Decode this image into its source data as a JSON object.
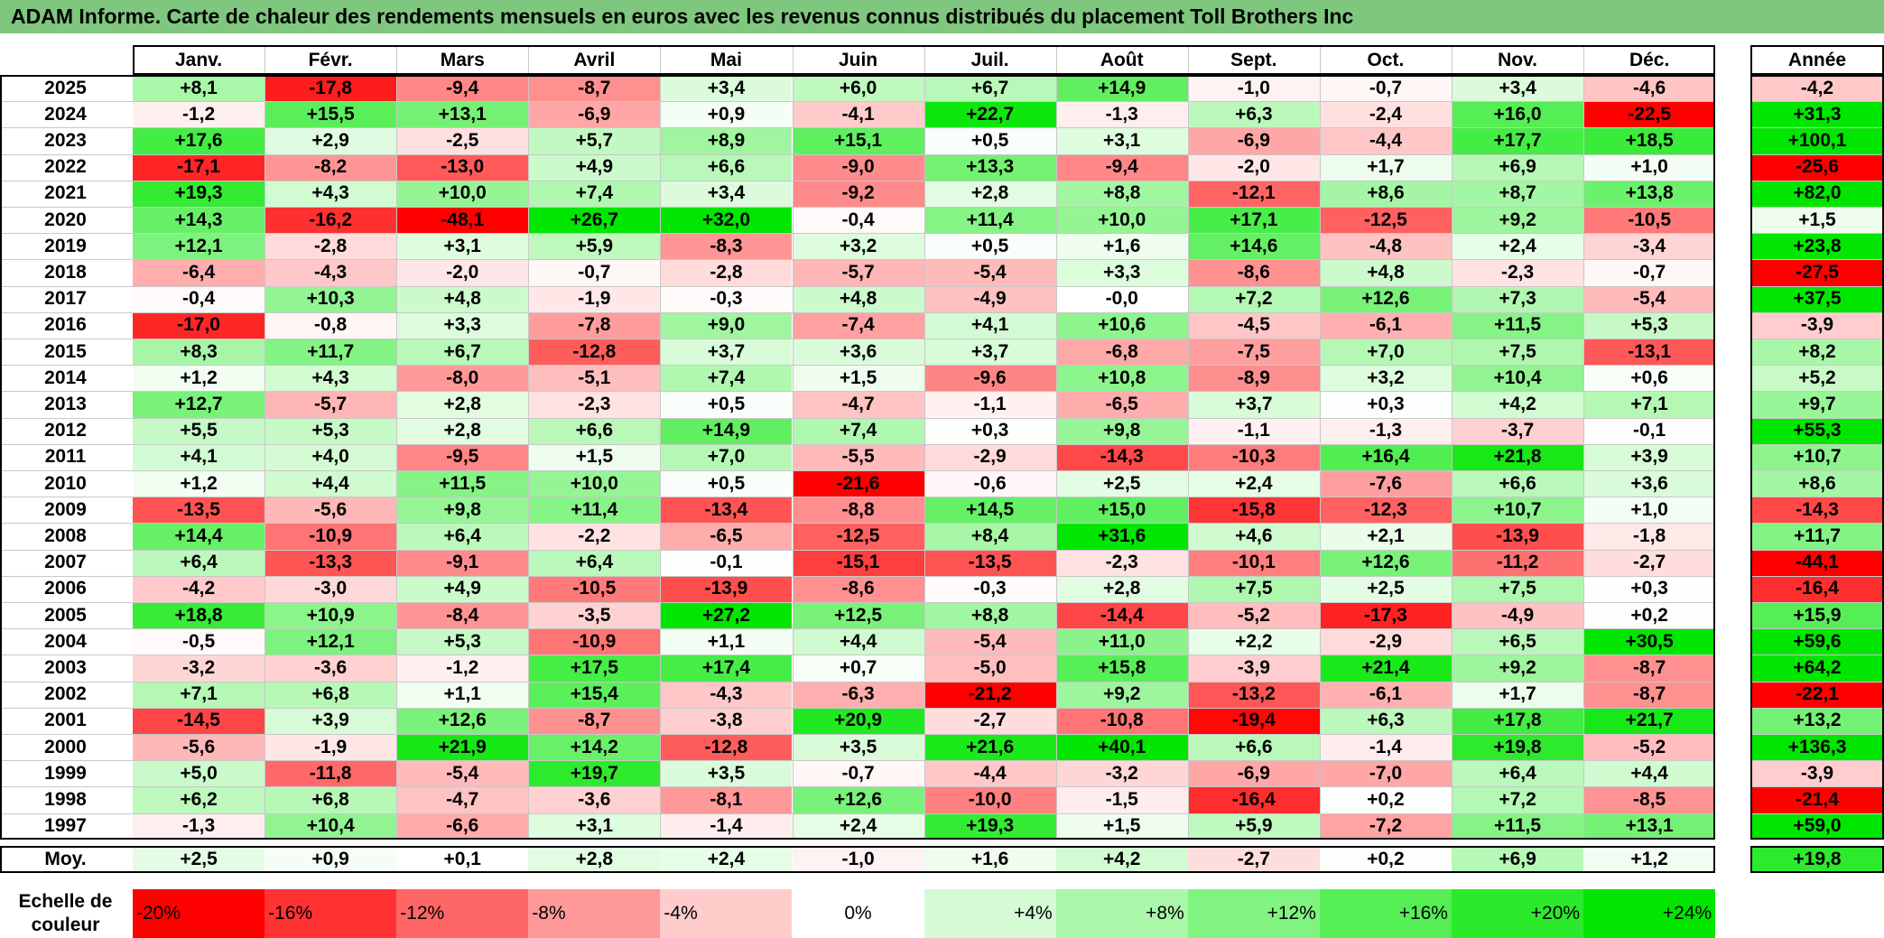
{
  "title": "ADAM Informe. Carte de chaleur des rendements mensuels en euros avec les revenus connus distribués du placement Toll Brothers Inc",
  "chart_data": {
    "type": "heatmap",
    "months": [
      "Janv.",
      "Févr.",
      "Mars",
      "Avril",
      "Mai",
      "Juin",
      "Juil.",
      "Août",
      "Sept.",
      "Oct.",
      "Nov.",
      "Déc."
    ],
    "annual_header": "Année",
    "rows": [
      {
        "year": "2025",
        "values": [
          "+8,1",
          "-17,8",
          "-9,4",
          "-8,7",
          "+3,4",
          "+6,0",
          "+6,7",
          "+14,9",
          "-1,0",
          "-0,7",
          "+3,4",
          "-4,6"
        ],
        "annual": "-4,2"
      },
      {
        "year": "2024",
        "values": [
          "-1,2",
          "+15,5",
          "+13,1",
          "-6,9",
          "+0,9",
          "-4,1",
          "+22,7",
          "-1,3",
          "+6,3",
          "-2,4",
          "+16,0",
          "-22,5"
        ],
        "annual": "+31,3"
      },
      {
        "year": "2023",
        "values": [
          "+17,6",
          "+2,9",
          "-2,5",
          "+5,7",
          "+8,9",
          "+15,1",
          "+0,5",
          "+3,1",
          "-6,9",
          "-4,4",
          "+17,7",
          "+18,5"
        ],
        "annual": "+100,1"
      },
      {
        "year": "2022",
        "values": [
          "-17,1",
          "-8,2",
          "-13,0",
          "+4,9",
          "+6,6",
          "-9,0",
          "+13,3",
          "-9,4",
          "-2,0",
          "+1,7",
          "+6,9",
          "+1,0"
        ],
        "annual": "-25,6"
      },
      {
        "year": "2021",
        "values": [
          "+19,3",
          "+4,3",
          "+10,0",
          "+7,4",
          "+3,4",
          "-9,2",
          "+2,8",
          "+8,8",
          "-12,1",
          "+8,6",
          "+8,7",
          "+13,8"
        ],
        "annual": "+82,0"
      },
      {
        "year": "2020",
        "values": [
          "+14,3",
          "-16,2",
          "-48,1",
          "+26,7",
          "+32,0",
          "-0,4",
          "+11,4",
          "+10,0",
          "+17,1",
          "-12,5",
          "+9,2",
          "-10,5"
        ],
        "annual": "+1,5"
      },
      {
        "year": "2019",
        "values": [
          "+12,1",
          "-2,8",
          "+3,1",
          "+5,9",
          "-8,3",
          "+3,2",
          "+0,5",
          "+1,6",
          "+14,6",
          "-4,8",
          "+2,4",
          "-3,4"
        ],
        "annual": "+23,8"
      },
      {
        "year": "2018",
        "values": [
          "-6,4",
          "-4,3",
          "-2,0",
          "-0,7",
          "-2,8",
          "-5,7",
          "-5,4",
          "+3,3",
          "-8,6",
          "+4,8",
          "-2,3",
          "-0,7"
        ],
        "annual": "-27,5"
      },
      {
        "year": "2017",
        "values": [
          "-0,4",
          "+10,3",
          "+4,8",
          "-1,9",
          "-0,3",
          "+4,8",
          "-4,9",
          "-0,0",
          "+7,2",
          "+12,6",
          "+7,3",
          "-5,4"
        ],
        "annual": "+37,5"
      },
      {
        "year": "2016",
        "values": [
          "-17,0",
          "-0,8",
          "+3,3",
          "-7,8",
          "+9,0",
          "-7,4",
          "+4,1",
          "+10,6",
          "-4,5",
          "-6,1",
          "+11,5",
          "+5,3"
        ],
        "annual": "-3,9"
      },
      {
        "year": "2015",
        "values": [
          "+8,3",
          "+11,7",
          "+6,7",
          "-12,8",
          "+3,7",
          "+3,6",
          "+3,7",
          "-6,8",
          "-7,5",
          "+7,0",
          "+7,5",
          "-13,1"
        ],
        "annual": "+8,2"
      },
      {
        "year": "2014",
        "values": [
          "+1,2",
          "+4,3",
          "-8,0",
          "-5,1",
          "+7,4",
          "+1,5",
          "-9,6",
          "+10,8",
          "-8,9",
          "+3,2",
          "+10,4",
          "+0,6"
        ],
        "annual": "+5,2"
      },
      {
        "year": "2013",
        "values": [
          "+12,7",
          "-5,7",
          "+2,8",
          "-2,3",
          "+0,5",
          "-4,7",
          "-1,1",
          "-6,5",
          "+3,7",
          "+0,3",
          "+4,2",
          "+7,1"
        ],
        "annual": "+9,7"
      },
      {
        "year": "2012",
        "values": [
          "+5,5",
          "+5,3",
          "+2,8",
          "+6,6",
          "+14,9",
          "+7,4",
          "+0,3",
          "+9,8",
          "-1,1",
          "-1,3",
          "-3,7",
          "-0,1"
        ],
        "annual": "+55,3"
      },
      {
        "year": "2011",
        "values": [
          "+4,1",
          "+4,0",
          "-9,5",
          "+1,5",
          "+7,0",
          "-5,5",
          "-2,9",
          "-14,3",
          "-10,3",
          "+16,4",
          "+21,8",
          "+3,9"
        ],
        "annual": "+10,7"
      },
      {
        "year": "2010",
        "values": [
          "+1,2",
          "+4,4",
          "+11,5",
          "+10,0",
          "+0,5",
          "-21,6",
          "-0,6",
          "+2,5",
          "+2,4",
          "-7,6",
          "+6,6",
          "+3,6"
        ],
        "annual": "+8,6"
      },
      {
        "year": "2009",
        "values": [
          "-13,5",
          "-5,6",
          "+9,8",
          "+11,4",
          "-13,4",
          "-8,8",
          "+14,5",
          "+15,0",
          "-15,8",
          "-12,3",
          "+10,7",
          "+1,0"
        ],
        "annual": "-14,3"
      },
      {
        "year": "2008",
        "values": [
          "+14,4",
          "-10,9",
          "+6,4",
          "-2,2",
          "-6,5",
          "-12,5",
          "+8,4",
          "+31,6",
          "+4,6",
          "+2,1",
          "-13,9",
          "-1,8"
        ],
        "annual": "+11,7"
      },
      {
        "year": "2007",
        "values": [
          "+6,4",
          "-13,3",
          "-9,1",
          "+6,4",
          "-0,1",
          "-15,1",
          "-13,5",
          "-2,3",
          "-10,1",
          "+12,6",
          "-11,2",
          "-2,7"
        ],
        "annual": "-44,1"
      },
      {
        "year": "2006",
        "values": [
          "-4,2",
          "-3,0",
          "+4,9",
          "-10,5",
          "-13,9",
          "-8,6",
          "-0,3",
          "+2,8",
          "+7,5",
          "+2,5",
          "+7,5",
          "+0,3"
        ],
        "annual": "-16,4"
      },
      {
        "year": "2005",
        "values": [
          "+18,8",
          "+10,9",
          "-8,4",
          "-3,5",
          "+27,2",
          "+12,5",
          "+8,8",
          "-14,4",
          "-5,2",
          "-17,3",
          "-4,9",
          "+0,2"
        ],
        "annual": "+15,9"
      },
      {
        "year": "2004",
        "values": [
          "-0,5",
          "+12,1",
          "+5,3",
          "-10,9",
          "+1,1",
          "+4,4",
          "-5,4",
          "+11,0",
          "+2,2",
          "-2,9",
          "+6,5",
          "+30,5"
        ],
        "annual": "+59,6"
      },
      {
        "year": "2003",
        "values": [
          "-3,2",
          "-3,6",
          "-1,2",
          "+17,5",
          "+17,4",
          "+0,7",
          "-5,0",
          "+15,8",
          "-3,9",
          "+21,4",
          "+9,2",
          "-8,7"
        ],
        "annual": "+64,2"
      },
      {
        "year": "2002",
        "values": [
          "+7,1",
          "+6,8",
          "+1,1",
          "+15,4",
          "-4,3",
          "-6,3",
          "-21,2",
          "+9,2",
          "-13,2",
          "-6,1",
          "+1,7",
          "-8,7"
        ],
        "annual": "-22,1"
      },
      {
        "year": "2001",
        "values": [
          "-14,5",
          "+3,9",
          "+12,6",
          "-8,7",
          "-3,8",
          "+20,9",
          "-2,7",
          "-10,8",
          "-19,4",
          "+6,3",
          "+17,8",
          "+21,7"
        ],
        "annual": "+13,2"
      },
      {
        "year": "2000",
        "values": [
          "-5,6",
          "-1,9",
          "+21,9",
          "+14,2",
          "-12,8",
          "+3,5",
          "+21,6",
          "+40,1",
          "+6,6",
          "-1,4",
          "+19,8",
          "-5,2"
        ],
        "annual": "+136,3"
      },
      {
        "year": "1999",
        "values": [
          "+5,0",
          "-11,8",
          "-5,4",
          "+19,7",
          "+3,5",
          "-0,7",
          "-4,4",
          "-3,2",
          "-6,9",
          "-7,0",
          "+6,4",
          "+4,4"
        ],
        "annual": "-3,9"
      },
      {
        "year": "1998",
        "values": [
          "+6,2",
          "+6,8",
          "-4,7",
          "-3,6",
          "-8,1",
          "+12,6",
          "-10,0",
          "-1,5",
          "-16,4",
          "+0,2",
          "+7,2",
          "-8,5"
        ],
        "annual": "-21,4"
      },
      {
        "year": "1997",
        "values": [
          "-1,3",
          "+10,4",
          "-6,6",
          "+3,1",
          "-1,4",
          "+2,4",
          "+19,3",
          "+1,5",
          "+5,9",
          "-7,2",
          "+11,5",
          "+13,1"
        ],
        "annual": "+59,0"
      }
    ],
    "average": {
      "label": "Moy.",
      "values": [
        "+2,5",
        "+0,9",
        "+0,1",
        "+2,8",
        "+2,4",
        "-1,0",
        "+1,6",
        "+4,2",
        "-2,7",
        "+0,2",
        "+6,9",
        "+1,2"
      ],
      "annual": "+19,8"
    },
    "scale": {
      "label": "Echelle de couleur",
      "stops": [
        {
          "label": "-20%",
          "value": -20
        },
        {
          "label": "-16%",
          "value": -16
        },
        {
          "label": "-12%",
          "value": -12
        },
        {
          "label": "-8%",
          "value": -8
        },
        {
          "label": "-4%",
          "value": -4
        },
        {
          "label": "0%",
          "value": 0
        },
        {
          "label": "+4%",
          "value": 4
        },
        {
          "label": "+8%",
          "value": 8
        },
        {
          "label": "+12%",
          "value": 12
        },
        {
          "label": "+16%",
          "value": 16
        },
        {
          "label": "+20%",
          "value": 20
        },
        {
          "label": "+24%",
          "value": 24
        }
      ]
    },
    "colors": {
      "negative": "#ff0000",
      "positive": "#00e600",
      "neutral": "#ffffff",
      "title_bg": "#7fc77f"
    },
    "grid": true
  }
}
